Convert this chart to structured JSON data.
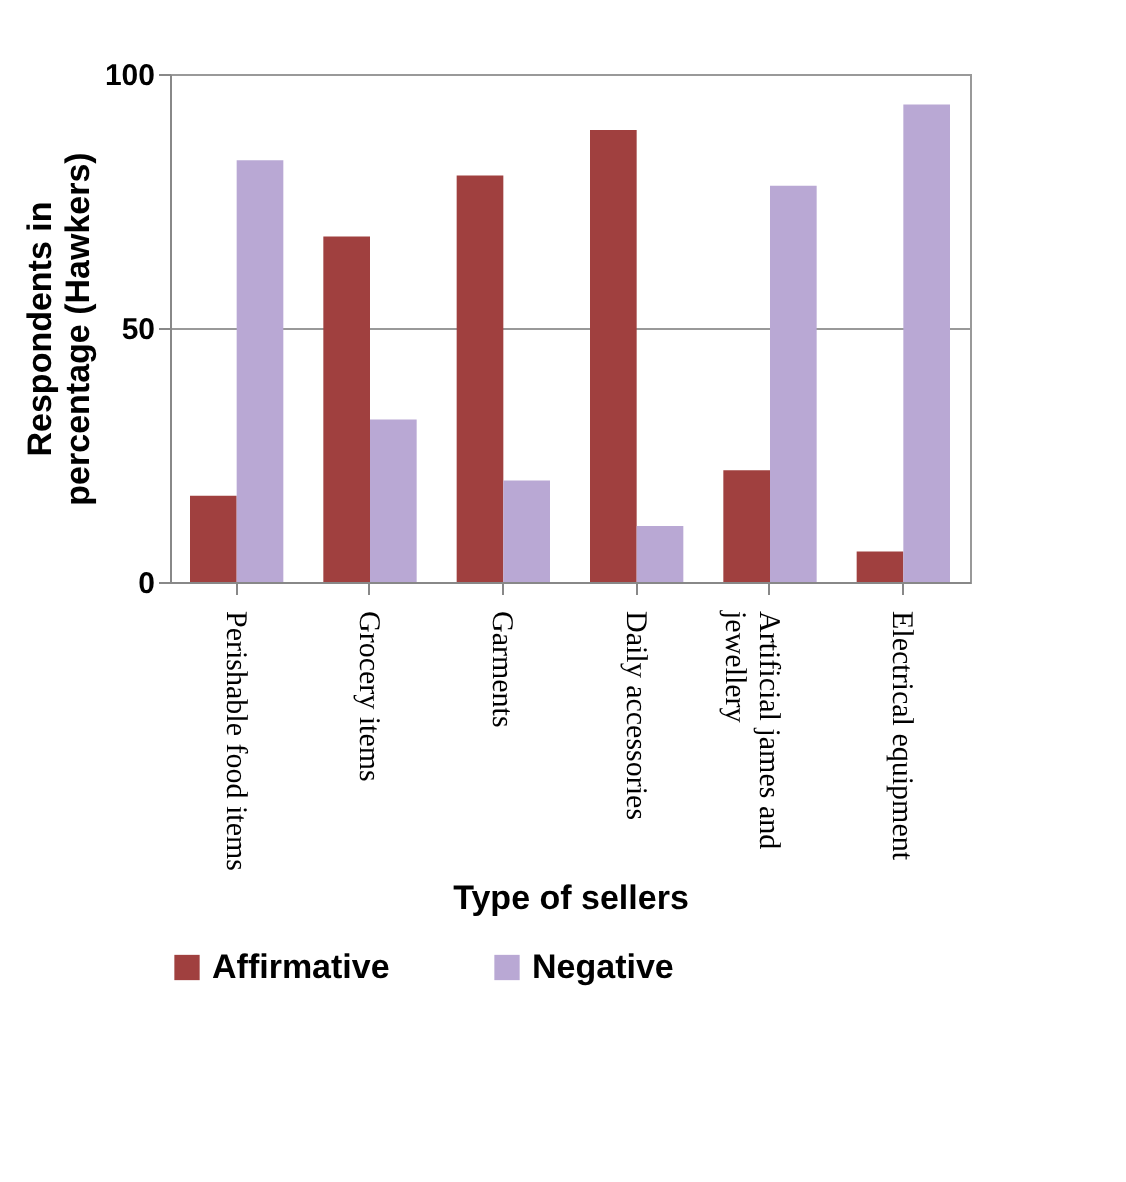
{
  "chart_data": {
    "type": "bar",
    "xlabel": "Type of sellers",
    "ylabel": "Respondents in percentage (Hawkers)",
    "categories": [
      "Perishable food items",
      "Grocery items",
      "Garments",
      "Daily accessories",
      "Artificial james and jewellery",
      "Electrical equipment"
    ],
    "series": [
      {
        "name": "Affirmative",
        "color": "#a0403f",
        "values": [
          17,
          68,
          80,
          89,
          22,
          6
        ]
      },
      {
        "name": "Negative",
        "color": "#b9a8d4",
        "values": [
          83,
          32,
          20,
          11,
          78,
          94
        ]
      }
    ],
    "ylim": [
      0,
      100
    ],
    "yticks": [
      0,
      50,
      100
    ],
    "grid": "y",
    "legend": "bottom"
  }
}
